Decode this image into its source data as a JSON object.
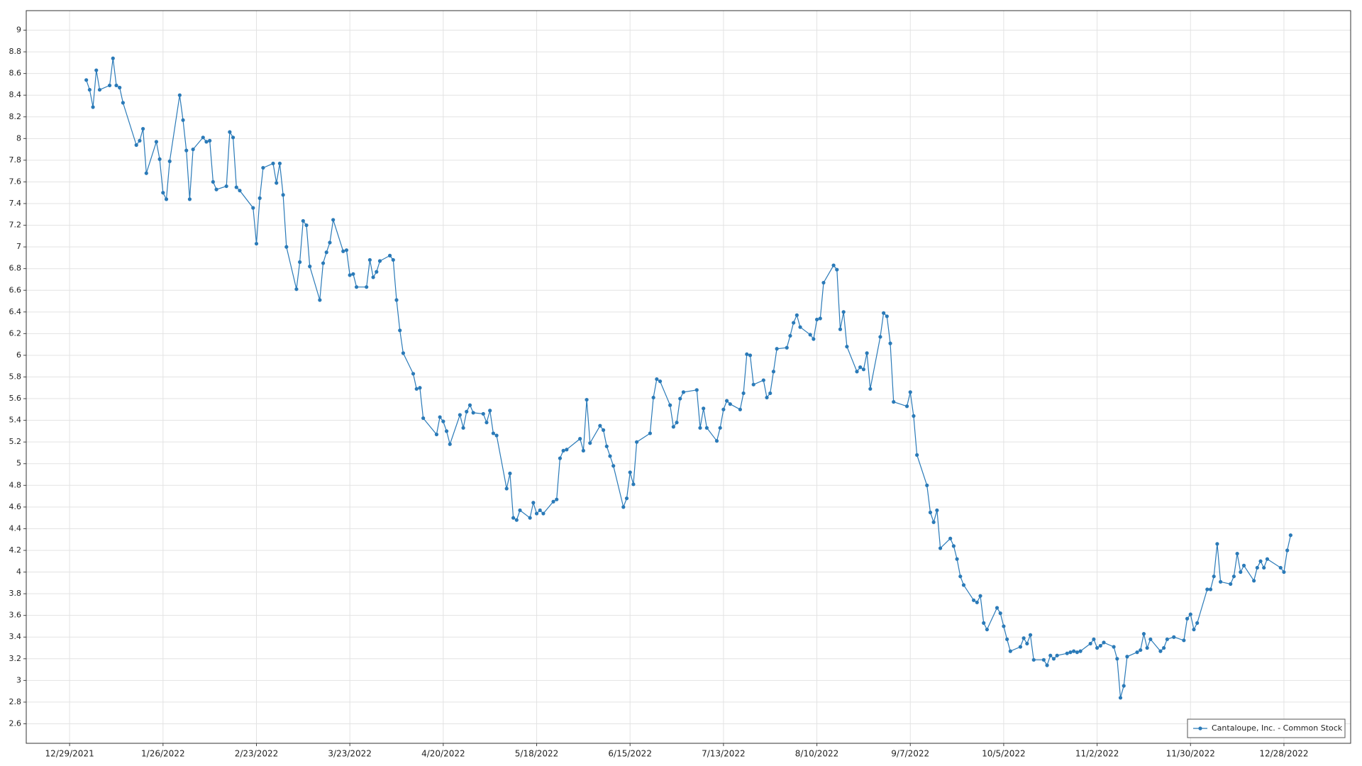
{
  "chart_data": {
    "type": "line",
    "x": [
      "2022-01-03",
      "2022-01-04",
      "2022-01-05",
      "2022-01-06",
      "2022-01-07",
      "2022-01-10",
      "2022-01-11",
      "2022-01-12",
      "2022-01-13",
      "2022-01-14",
      "2022-01-18",
      "2022-01-19",
      "2022-01-20",
      "2022-01-21",
      "2022-01-24",
      "2022-01-25",
      "2022-01-26",
      "2022-01-27",
      "2022-01-28",
      "2022-01-31",
      "2022-02-01",
      "2022-02-02",
      "2022-02-03",
      "2022-02-04",
      "2022-02-07",
      "2022-02-08",
      "2022-02-09",
      "2022-02-10",
      "2022-02-11",
      "2022-02-14",
      "2022-02-15",
      "2022-02-16",
      "2022-02-17",
      "2022-02-18",
      "2022-02-22",
      "2022-02-23",
      "2022-02-24",
      "2022-02-25",
      "2022-02-28",
      "2022-03-01",
      "2022-03-02",
      "2022-03-03",
      "2022-03-04",
      "2022-03-07",
      "2022-03-08",
      "2022-03-09",
      "2022-03-10",
      "2022-03-11",
      "2022-03-14",
      "2022-03-15",
      "2022-03-16",
      "2022-03-17",
      "2022-03-18",
      "2022-03-21",
      "2022-03-22",
      "2022-03-23",
      "2022-03-24",
      "2022-03-25",
      "2022-03-28",
      "2022-03-29",
      "2022-03-30",
      "2022-03-31",
      "2022-04-01",
      "2022-04-04",
      "2022-04-05",
      "2022-04-06",
      "2022-04-07",
      "2022-04-08",
      "2022-04-11",
      "2022-04-12",
      "2022-04-13",
      "2022-04-14",
      "2022-04-18",
      "2022-04-19",
      "2022-04-20",
      "2022-04-21",
      "2022-04-22",
      "2022-04-25",
      "2022-04-26",
      "2022-04-27",
      "2022-04-28",
      "2022-04-29",
      "2022-05-02",
      "2022-05-03",
      "2022-05-04",
      "2022-05-05",
      "2022-05-06",
      "2022-05-09",
      "2022-05-10",
      "2022-05-11",
      "2022-05-12",
      "2022-05-13",
      "2022-05-16",
      "2022-05-17",
      "2022-05-18",
      "2022-05-19",
      "2022-05-20",
      "2022-05-23",
      "2022-05-24",
      "2022-05-25",
      "2022-05-26",
      "2022-05-27",
      "2022-05-31",
      "2022-06-01",
      "2022-06-02",
      "2022-06-03",
      "2022-06-06",
      "2022-06-07",
      "2022-06-08",
      "2022-06-09",
      "2022-06-10",
      "2022-06-13",
      "2022-06-14",
      "2022-06-15",
      "2022-06-16",
      "2022-06-17",
      "2022-06-21",
      "2022-06-22",
      "2022-06-23",
      "2022-06-24",
      "2022-06-27",
      "2022-06-28",
      "2022-06-29",
      "2022-06-30",
      "2022-07-01",
      "2022-07-05",
      "2022-07-06",
      "2022-07-07",
      "2022-07-08",
      "2022-07-11",
      "2022-07-12",
      "2022-07-13",
      "2022-07-14",
      "2022-07-15",
      "2022-07-18",
      "2022-07-19",
      "2022-07-20",
      "2022-07-21",
      "2022-07-22",
      "2022-07-25",
      "2022-07-26",
      "2022-07-27",
      "2022-07-28",
      "2022-07-29",
      "2022-08-01",
      "2022-08-02",
      "2022-08-03",
      "2022-08-04",
      "2022-08-05",
      "2022-08-08",
      "2022-08-09",
      "2022-08-10",
      "2022-08-11",
      "2022-08-12",
      "2022-08-15",
      "2022-08-16",
      "2022-08-17",
      "2022-08-18",
      "2022-08-19",
      "2022-08-22",
      "2022-08-23",
      "2022-08-24",
      "2022-08-25",
      "2022-08-26",
      "2022-08-29",
      "2022-08-30",
      "2022-08-31",
      "2022-09-01",
      "2022-09-02",
      "2022-09-06",
      "2022-09-07",
      "2022-09-08",
      "2022-09-09",
      "2022-09-12",
      "2022-09-13",
      "2022-09-14",
      "2022-09-15",
      "2022-09-16",
      "2022-09-19",
      "2022-09-20",
      "2022-09-21",
      "2022-09-22",
      "2022-09-23",
      "2022-09-26",
      "2022-09-27",
      "2022-09-28",
      "2022-09-29",
      "2022-09-30",
      "2022-10-03",
      "2022-10-04",
      "2022-10-05",
      "2022-10-06",
      "2022-10-07",
      "2022-10-10",
      "2022-10-11",
      "2022-10-12",
      "2022-10-13",
      "2022-10-14",
      "2022-10-17",
      "2022-10-18",
      "2022-10-19",
      "2022-10-20",
      "2022-10-21",
      "2022-10-24",
      "2022-10-25",
      "2022-10-26",
      "2022-10-27",
      "2022-10-28",
      "2022-10-31",
      "2022-11-01",
      "2022-11-02",
      "2022-11-03",
      "2022-11-04",
      "2022-11-07",
      "2022-11-08",
      "2022-11-09",
      "2022-11-10",
      "2022-11-11",
      "2022-11-14",
      "2022-11-15",
      "2022-11-16",
      "2022-11-17",
      "2022-11-18",
      "2022-11-21",
      "2022-11-22",
      "2022-11-23",
      "2022-11-25",
      "2022-11-28",
      "2022-11-29",
      "2022-11-30",
      "2022-12-01",
      "2022-12-02",
      "2022-12-05",
      "2022-12-06",
      "2022-12-07",
      "2022-12-08",
      "2022-12-09",
      "2022-12-12",
      "2022-12-13",
      "2022-12-14",
      "2022-12-15",
      "2022-12-16",
      "2022-12-19",
      "2022-12-20",
      "2022-12-21",
      "2022-12-22",
      "2022-12-23",
      "2022-12-27",
      "2022-12-28",
      "2022-12-29",
      "2022-12-30"
    ],
    "series": [
      {
        "name": "Cantaloupe, Inc. - Common Stock",
        "color": "#2a7ab8",
        "values": [
          8.54,
          8.45,
          8.29,
          8.63,
          8.45,
          8.49,
          8.74,
          8.49,
          8.47,
          8.33,
          7.94,
          7.98,
          8.09,
          7.68,
          7.97,
          7.81,
          7.5,
          7.44,
          7.79,
          8.4,
          8.17,
          7.89,
          7.44,
          7.9,
          8.01,
          7.97,
          7.98,
          7.6,
          7.53,
          7.56,
          8.06,
          8.01,
          7.55,
          7.52,
          7.36,
          7.03,
          7.45,
          7.73,
          7.77,
          7.59,
          7.77,
          7.48,
          7.0,
          6.61,
          6.86,
          7.24,
          7.2,
          6.82,
          6.51,
          6.85,
          6.95,
          7.04,
          7.25,
          6.96,
          6.97,
          6.74,
          6.75,
          6.63,
          6.63,
          6.88,
          6.72,
          6.77,
          6.87,
          6.92,
          6.88,
          6.51,
          6.23,
          6.02,
          5.83,
          5.69,
          5.7,
          5.42,
          5.27,
          5.43,
          5.39,
          5.3,
          5.18,
          5.45,
          5.33,
          5.48,
          5.54,
          5.47,
          5.46,
          5.38,
          5.49,
          5.28,
          5.26,
          4.77,
          4.91,
          4.5,
          4.48,
          4.57,
          4.5,
          4.64,
          4.54,
          4.57,
          4.54,
          4.65,
          4.67,
          5.05,
          5.12,
          5.13,
          5.23,
          5.12,
          5.59,
          5.19,
          5.35,
          5.31,
          5.16,
          5.07,
          4.98,
          4.6,
          4.68,
          4.92,
          4.81,
          5.2,
          5.28,
          5.61,
          5.78,
          5.76,
          5.54,
          5.34,
          5.38,
          5.6,
          5.66,
          5.68,
          5.33,
          5.51,
          5.33,
          5.21,
          5.33,
          5.5,
          5.58,
          5.55,
          5.5,
          5.65,
          6.01,
          6.0,
          5.73,
          5.77,
          5.61,
          5.65,
          5.85,
          6.06,
          6.07,
          6.18,
          6.3,
          6.37,
          6.26,
          6.19,
          6.15,
          6.33,
          6.34,
          6.67,
          6.83,
          6.79,
          6.24,
          6.4,
          6.08,
          5.85,
          5.89,
          5.87,
          6.02,
          5.69,
          6.17,
          6.39,
          6.36,
          6.11,
          5.57,
          5.53,
          5.66,
          5.44,
          5.08,
          4.8,
          4.55,
          4.46,
          4.57,
          4.22,
          4.31,
          4.24,
          4.12,
          3.96,
          3.88,
          3.74,
          3.72,
          3.78,
          3.53,
          3.47,
          3.67,
          3.62,
          3.5,
          3.38,
          3.27,
          3.31,
          3.39,
          3.34,
          3.42,
          3.19,
          3.19,
          3.14,
          3.23,
          3.2,
          3.23,
          3.25,
          3.26,
          3.27,
          3.26,
          3.27,
          3.34,
          3.38,
          3.3,
          3.32,
          3.35,
          3.31,
          3.2,
          2.84,
          2.95,
          3.22,
          3.26,
          3.28,
          3.43,
          3.3,
          3.38,
          3.27,
          3.3,
          3.38,
          3.4,
          3.37,
          3.57,
          3.61,
          3.47,
          3.53,
          3.84,
          3.84,
          3.96,
          4.26,
          3.91,
          3.89,
          3.96,
          4.17,
          4.0,
          4.06,
          3.92,
          4.04,
          4.1,
          4.04,
          4.12,
          4.04,
          4.0,
          4.2,
          4.34
        ]
      }
    ],
    "xlim": [
      "2021-12-16",
      "2023-01-17"
    ],
    "xticks": [
      {
        "value": "2021-12-29",
        "label": "12/29/2021"
      },
      {
        "value": "2022-01-26",
        "label": "1/26/2022"
      },
      {
        "value": "2022-02-23",
        "label": "2/23/2022"
      },
      {
        "value": "2022-03-23",
        "label": "3/23/2022"
      },
      {
        "value": "2022-04-20",
        "label": "4/20/2022"
      },
      {
        "value": "2022-05-18",
        "label": "5/18/2022"
      },
      {
        "value": "2022-06-15",
        "label": "6/15/2022"
      },
      {
        "value": "2022-07-13",
        "label": "7/13/2022"
      },
      {
        "value": "2022-08-10",
        "label": "8/10/2022"
      },
      {
        "value": "2022-09-07",
        "label": "9/7/2022"
      },
      {
        "value": "2022-10-05",
        "label": "10/5/2022"
      },
      {
        "value": "2022-11-02",
        "label": "11/2/2022"
      },
      {
        "value": "2022-11-30",
        "label": "11/30/2022"
      },
      {
        "value": "2022-12-28",
        "label": "12/28/2022"
      }
    ],
    "ylim": [
      2.42,
      9.18
    ],
    "yticks": [
      2.6,
      2.8,
      3,
      3.2,
      3.4,
      3.6,
      3.8,
      4,
      4.2,
      4.4,
      4.6,
      4.8,
      5,
      5.2,
      5.4,
      5.6,
      5.8,
      6,
      6.2,
      6.4,
      6.6,
      6.8,
      7,
      7.2,
      7.4,
      7.6,
      7.8,
      8,
      8.2,
      8.4,
      8.6,
      8.8,
      9
    ],
    "grid": true,
    "legend": "lower right"
  }
}
